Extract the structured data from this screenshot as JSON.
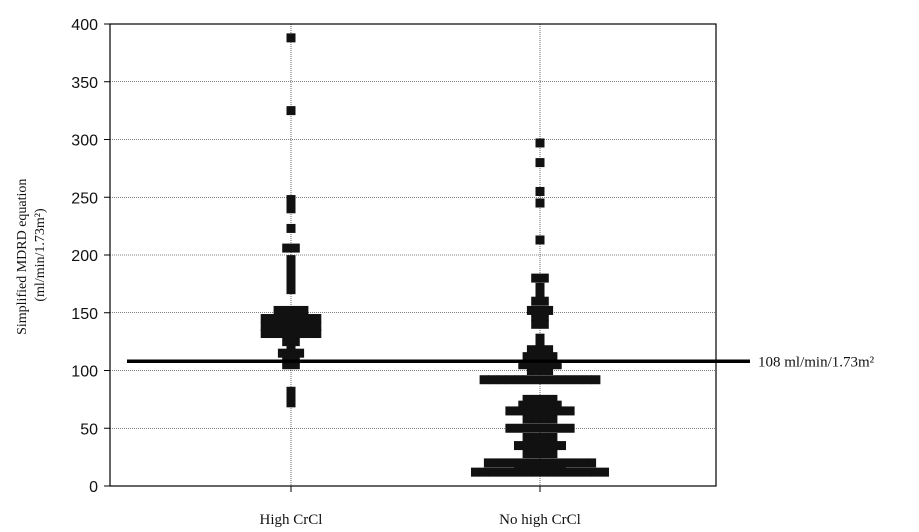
{
  "chart_data": {
    "type": "scatter",
    "categories": [
      "High CrCl",
      "No high CrCl"
    ],
    "ylabel_line1": "Simplified MDRD equation",
    "ylabel_line2": "(ml/min/1.73m²)",
    "ylim": [
      0,
      400
    ],
    "yticks": [
      0,
      50,
      100,
      150,
      200,
      250,
      300,
      350,
      400
    ],
    "grid": true,
    "reference_line": {
      "value": 108,
      "label": "108 ml/min/1.73m²"
    },
    "series": [
      {
        "category": "High CrCl",
        "values": [
          388,
          325,
          248,
          244,
          242,
          240,
          223,
          206,
          206,
          196,
          190,
          189,
          188,
          182,
          176,
          170,
          152,
          152,
          152,
          152,
          145,
          145,
          145,
          145,
          145,
          145,
          145,
          138,
          138,
          138,
          138,
          138,
          138,
          138,
          132,
          132,
          132,
          132,
          132,
          132,
          132,
          125,
          125,
          120,
          115,
          115,
          115,
          110,
          110,
          105,
          105,
          82,
          78,
          72
        ]
      },
      {
        "category": "No high CrCl",
        "values": [
          297,
          280,
          255,
          245,
          213,
          180,
          180,
          172,
          165,
          160,
          160,
          152,
          152,
          152,
          147,
          147,
          140,
          140,
          128,
          122,
          118,
          118,
          118,
          112,
          112,
          112,
          112,
          105,
          105,
          105,
          105,
          105,
          100,
          100,
          100,
          92,
          92,
          92,
          92,
          92,
          92,
          92,
          92,
          92,
          92,
          92,
          92,
          92,
          92,
          75,
          75,
          75,
          75,
          70,
          70,
          70,
          70,
          70,
          65,
          65,
          65,
          65,
          65,
          65,
          65,
          65,
          58,
          58,
          58,
          58,
          50,
          50,
          50,
          50,
          50,
          50,
          50,
          50,
          42,
          42,
          42,
          42,
          35,
          35,
          35,
          35,
          35,
          35,
          28,
          28,
          28,
          28,
          20,
          20,
          20,
          20,
          20,
          20,
          20,
          20,
          20,
          20,
          20,
          20,
          20,
          15,
          15,
          15,
          15,
          15,
          15,
          12,
          12,
          12,
          12,
          12,
          12,
          12,
          12,
          12,
          12,
          12,
          12,
          12,
          12,
          12,
          12
        ]
      }
    ]
  }
}
